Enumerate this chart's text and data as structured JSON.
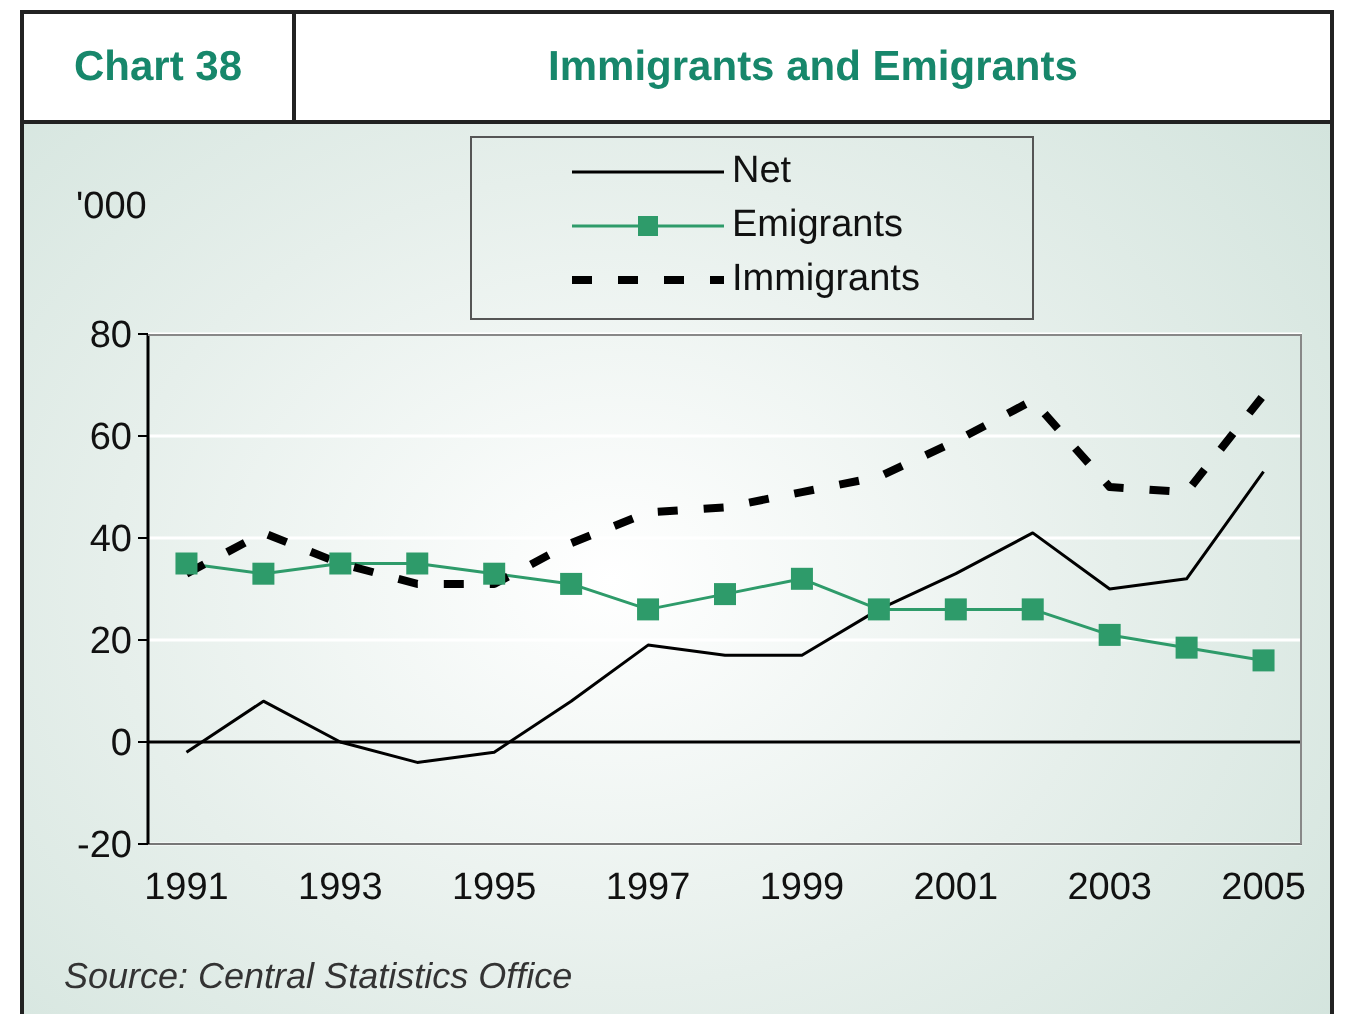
{
  "chart_data": {
    "type": "line",
    "title": "Immigrants and Emigrants",
    "ylabel": "'000",
    "annotations": [
      "Chart 38",
      "Source: Central Statistics Office"
    ],
    "categories": [
      "1991",
      null,
      "1993",
      null,
      "1995",
      null,
      "1997",
      null,
      "1999",
      null,
      "2001",
      null,
      "2003",
      null,
      "2005"
    ],
    "series": [
      {
        "name": "Net",
        "color": "#000000",
        "line_style": "solid",
        "marker": "none",
        "values": [
          -2,
          8,
          0,
          -4,
          -2,
          8,
          19,
          17,
          17,
          26,
          33,
          41,
          30,
          32,
          53
        ]
      },
      {
        "name": "Emigrants",
        "color": "#2e9b6a",
        "line_style": "solid",
        "marker": "square",
        "values": [
          35,
          33,
          35,
          35,
          33,
          31,
          26,
          29,
          32,
          26,
          26,
          26,
          21,
          18.5,
          16
        ]
      },
      {
        "name": "Immigrants",
        "color": "#000000",
        "line_style": "dashed",
        "marker": "none",
        "values": [
          33,
          41,
          35,
          31,
          31,
          39,
          45,
          46,
          49,
          52,
          59,
          67,
          50,
          49,
          68
        ]
      }
    ],
    "ylim": [
      -20,
      80
    ],
    "yticks": [
      -20,
      0,
      20,
      40,
      60,
      80
    ],
    "grid": "y",
    "legend": "top",
    "ref_lines": [
      {
        "axis": "y",
        "value": 0,
        "color": "#000000"
      }
    ]
  }
}
